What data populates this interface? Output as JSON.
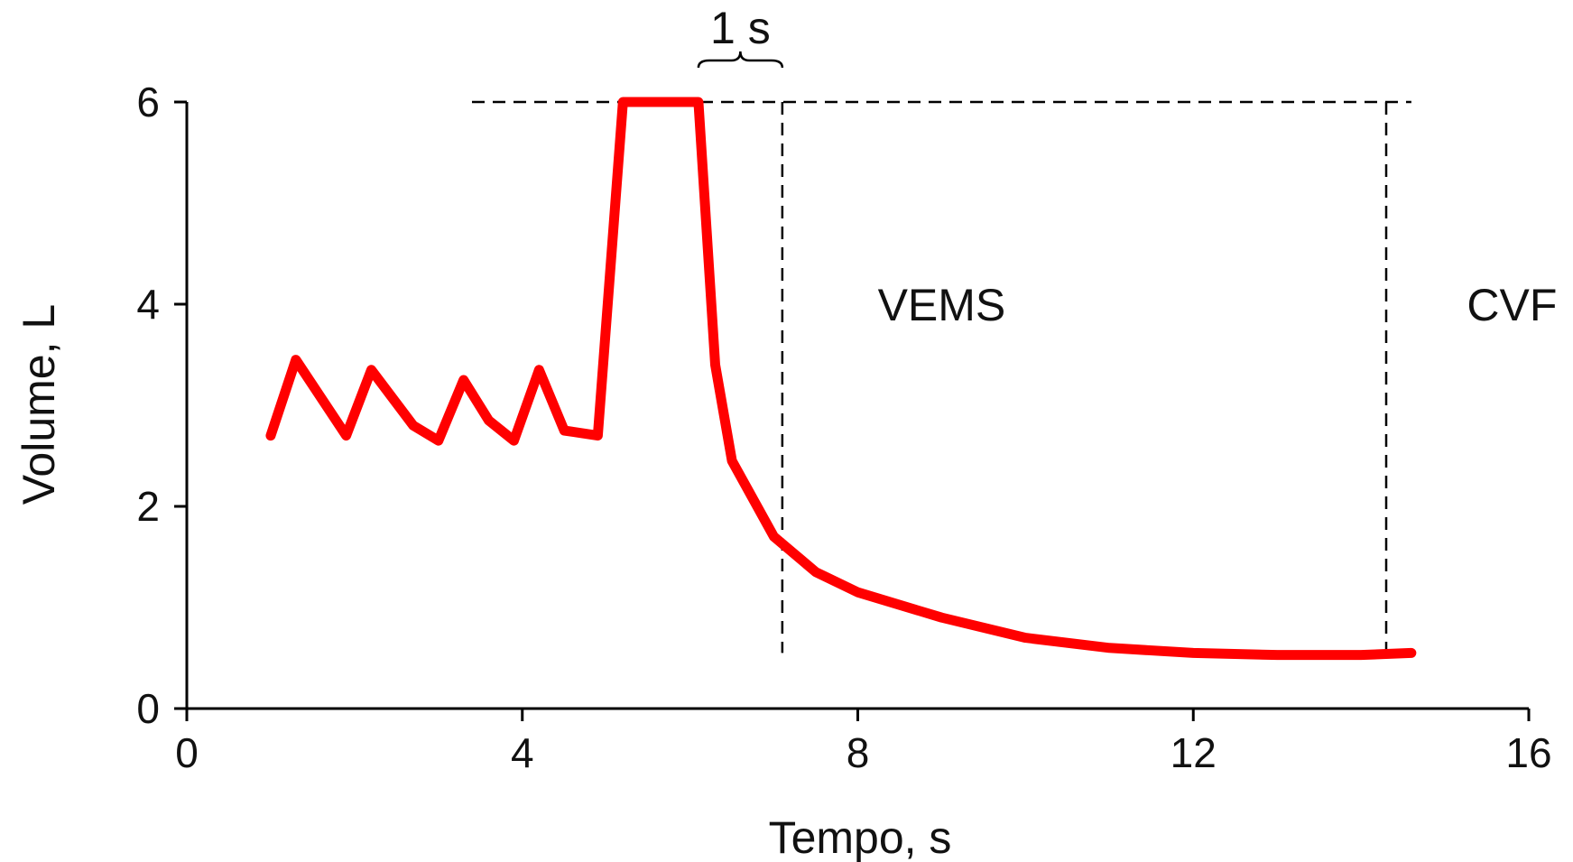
{
  "chart_data": {
    "type": "line",
    "title": "",
    "xlabel": "Tempo, s",
    "ylabel": "Volume, L",
    "xlim": [
      0,
      16
    ],
    "ylim": [
      0,
      6
    ],
    "x_ticks": [
      0,
      4,
      8,
      12,
      16
    ],
    "y_ticks": [
      0,
      2,
      4,
      6
    ],
    "grid": false,
    "series": [
      {
        "color": "#ff0000",
        "x": [
          1.0,
          1.3,
          1.9,
          2.2,
          2.7,
          3.0,
          3.3,
          3.6,
          3.9,
          4.2,
          4.5,
          4.9,
          5.2,
          6.1,
          6.3,
          6.5,
          7.0,
          7.5,
          8.0,
          9.0,
          10.0,
          11.0,
          12.0,
          13.0,
          14.0,
          14.6
        ],
        "y": [
          2.7,
          3.45,
          2.7,
          3.35,
          2.8,
          2.65,
          3.25,
          2.85,
          2.65,
          3.35,
          2.75,
          2.7,
          6.0,
          6.0,
          3.4,
          2.45,
          1.7,
          1.35,
          1.15,
          0.9,
          0.7,
          0.6,
          0.55,
          0.53,
          0.53,
          0.55
        ]
      }
    ],
    "reference_lines": {
      "horizontal_y": 6,
      "horizontal_from_x": 3.4,
      "horizontal_to_x": 14.6,
      "vertical_x": [
        7.1,
        14.3
      ]
    },
    "bracket": {
      "from_x": 6.1,
      "to_x": 7.1,
      "label": "1 s"
    },
    "annotations": [
      {
        "text": "VEMS",
        "x": 9.0,
        "y": 4.0
      },
      {
        "text": "CVF",
        "x": 15.8,
        "y": 4.0
      }
    ]
  }
}
